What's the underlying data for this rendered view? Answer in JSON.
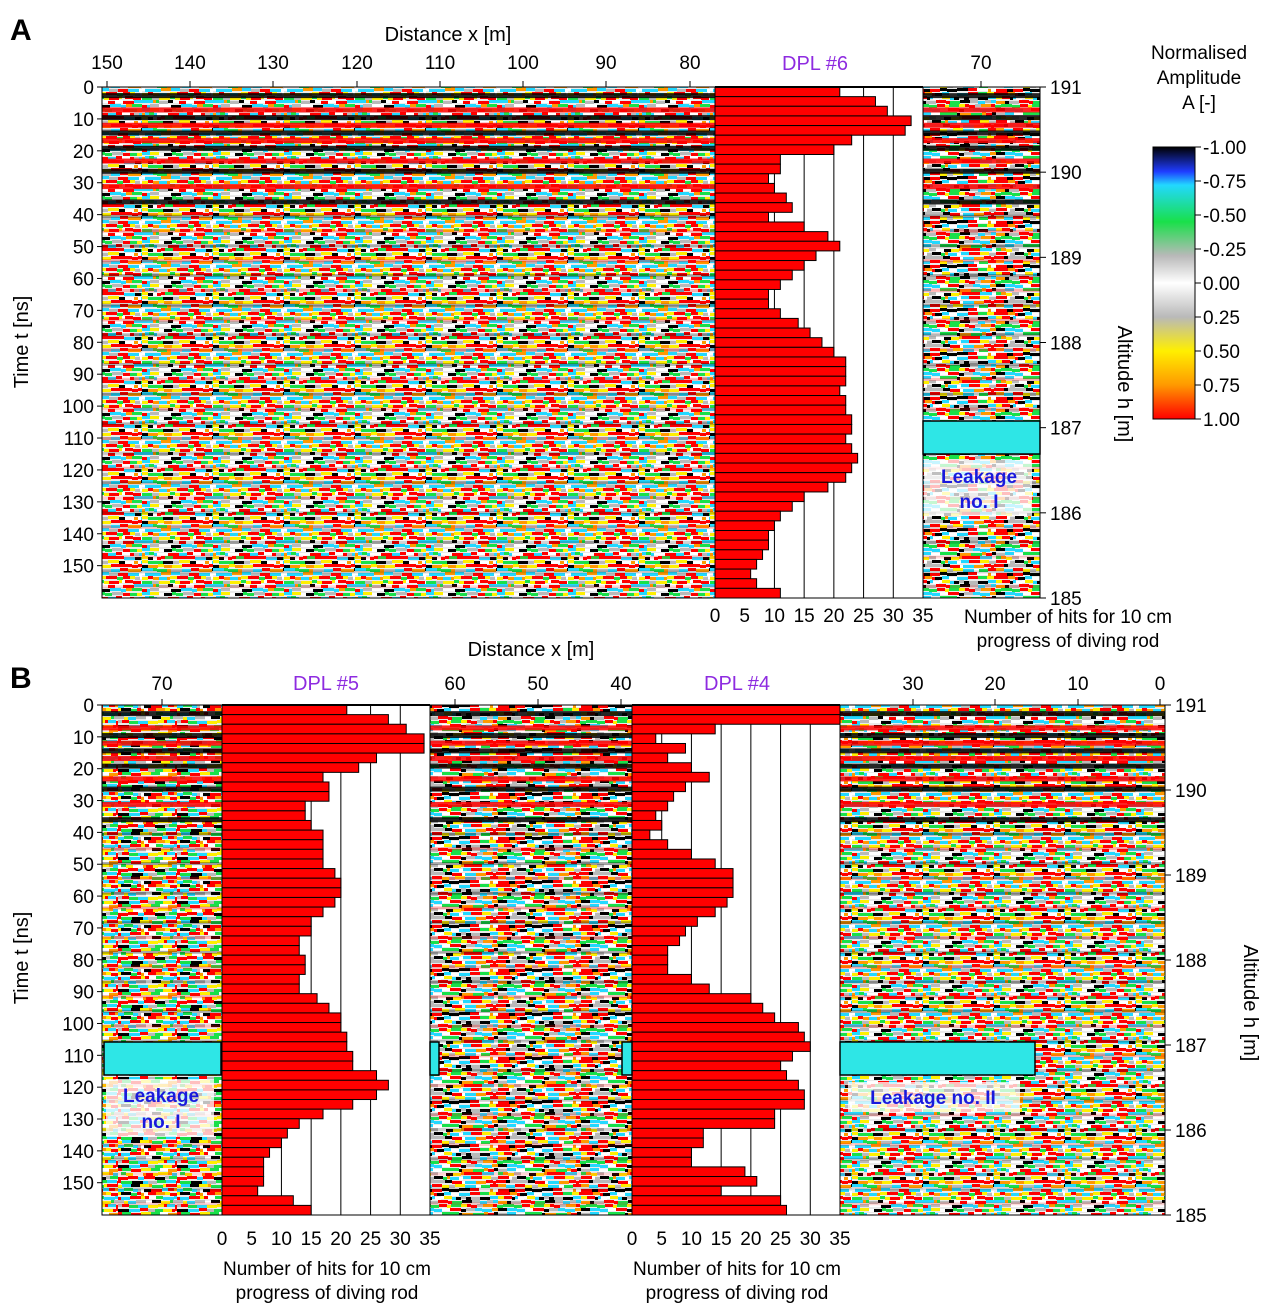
{
  "panel_labels": {
    "a": "A",
    "b": "B"
  },
  "colorbar": {
    "title_lines": [
      "Normalised",
      "Amplitude",
      "A [-]"
    ],
    "tick_labels": [
      "-1.00",
      "-0.75",
      "-0.50",
      "-0.25",
      "0.00",
      "0.25",
      "0.50",
      "0.75",
      "1.00"
    ],
    "stops": [
      {
        "v": -1.0,
        "color": "#000000"
      },
      {
        "v": -0.82,
        "color": "#1f3cff"
      },
      {
        "v": -0.72,
        "color": "#22d8ff"
      },
      {
        "v": -0.45,
        "color": "#19e04a"
      },
      {
        "v": -0.2,
        "color": "#b9b9b9"
      },
      {
        "v": 0.0,
        "color": "#ffffff"
      },
      {
        "v": 0.25,
        "color": "#b9b9b9"
      },
      {
        "v": 0.5,
        "color": "#ffef00"
      },
      {
        "v": 0.75,
        "color": "#ff9900"
      },
      {
        "v": 1.0,
        "color": "#ff0000"
      }
    ]
  },
  "axes": {
    "distance_label": "Distance  x [m]",
    "time_label": "Time  t [ns]",
    "altitude_label": "Altitude  h [m]",
    "hits_label_lines": [
      "Number of hits for 10 cm",
      "progress of diving rod"
    ],
    "time_ticks": [
      "0",
      "10",
      "20",
      "30",
      "40",
      "50",
      "60",
      "70",
      "80",
      "90",
      "100",
      "110",
      "120",
      "130",
      "140",
      "150"
    ],
    "altitude_ticks": [
      "191",
      "190",
      "189",
      "188",
      "187",
      "186",
      "185"
    ],
    "hits_ticks": [
      "0",
      "5",
      "10",
      "15",
      "20",
      "25",
      "30",
      "35"
    ]
  },
  "panel_a": {
    "distance_ticks_left": [
      "150",
      "140",
      "130",
      "120",
      "110",
      "100",
      "90",
      "80"
    ],
    "distance_ticks_right": [
      "70"
    ],
    "leakage_label_lines": [
      "Leakage",
      "no. I"
    ]
  },
  "panel_b": {
    "distance_ticks_left": [
      "70"
    ],
    "distance_ticks_mid": [
      "60",
      "50",
      "40"
    ],
    "distance_ticks_right": [
      "30",
      "20",
      "10",
      "0"
    ],
    "leakage1_label_lines": [
      "Leakage",
      "no. I"
    ],
    "leakage2_label": "Leakage no. II"
  },
  "chart_data": [
    {
      "type": "bar",
      "orientation": "horizontal",
      "title": "DPL #6",
      "x_range": [
        0,
        35
      ],
      "y_range_ns": [
        0,
        157
      ],
      "bin_ns": 3.14,
      "values": [
        21,
        27,
        29,
        33,
        32,
        23,
        20,
        11,
        11,
        9,
        10,
        12,
        13,
        9,
        15,
        19,
        21,
        17,
        15,
        13,
        11,
        9,
        9,
        11,
        14,
        16,
        18,
        20,
        22,
        22,
        22,
        21,
        22,
        22,
        23,
        23,
        22,
        23,
        24,
        23,
        22,
        19,
        15,
        13,
        11,
        10,
        9,
        9,
        8,
        7,
        6,
        7,
        11
      ]
    },
    {
      "type": "bar",
      "orientation": "horizontal",
      "title": "DPL #5",
      "x_range": [
        0,
        35
      ],
      "y_range_ns": [
        0,
        157
      ],
      "bin_ns": 3.14,
      "values": [
        21,
        28,
        31,
        34,
        34,
        26,
        23,
        17,
        18,
        18,
        14,
        14,
        15,
        17,
        17,
        17,
        17,
        19,
        20,
        20,
        19,
        17,
        15,
        15,
        13,
        13,
        14,
        14,
        13,
        13,
        16,
        18,
        20,
        20,
        21,
        21,
        22,
        22,
        26,
        28,
        26,
        22,
        17,
        13,
        11,
        10,
        8,
        7,
        7,
        7,
        6,
        12,
        15
      ]
    },
    {
      "type": "bar",
      "orientation": "horizontal",
      "title": "DPL #4",
      "x_range": [
        0,
        35
      ],
      "y_range_ns": [
        0,
        157
      ],
      "bin_ns": 3.14,
      "values": [
        35,
        35,
        14,
        4,
        9,
        6,
        10,
        13,
        9,
        7,
        6,
        4,
        5,
        3,
        6,
        10,
        14,
        17,
        17,
        17,
        16,
        14,
        11,
        9,
        8,
        6,
        6,
        6,
        10,
        13,
        20,
        22,
        24,
        28,
        29,
        30,
        27,
        25,
        26,
        28,
        29,
        29,
        24,
        24,
        12,
        12,
        10,
        10,
        19,
        21,
        15,
        25,
        26
      ]
    }
  ]
}
